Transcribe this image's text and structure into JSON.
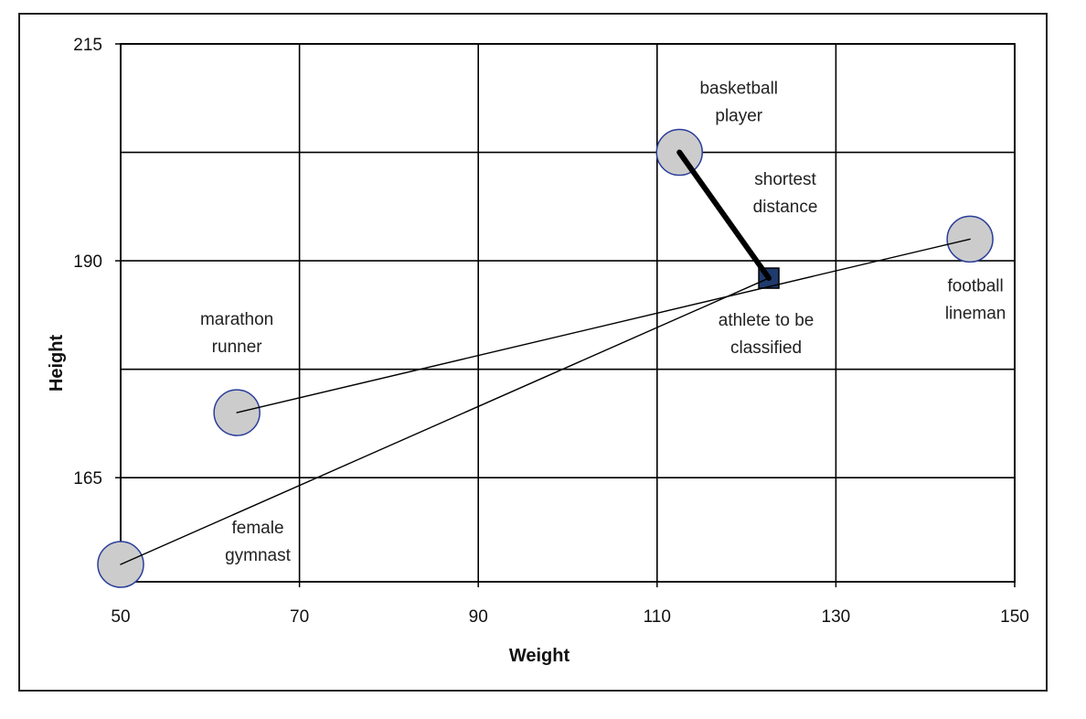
{
  "chart_data": {
    "type": "scatter",
    "title": "",
    "xlabel": "Weight",
    "ylabel": "Height",
    "xlim": [
      50,
      150
    ],
    "ylim": [
      153,
      215
    ],
    "x_ticks": [
      50,
      70,
      90,
      110,
      130,
      150
    ],
    "y_ticks": [
      165,
      190,
      215
    ],
    "x_grid_step": 20,
    "y_grid_step": 12.5,
    "grid": true,
    "legend": "none",
    "series": [
      {
        "marker": "circle",
        "points": [
          {
            "label": [
              "marathon",
              "runner"
            ],
            "x": 63,
            "y": 172.5
          },
          {
            "label": [
              "basketball",
              "player"
            ],
            "x": 112.5,
            "y": 202.5
          },
          {
            "label": [
              "football",
              "lineman"
            ],
            "x": 145,
            "y": 192.5
          },
          {
            "label": [
              "female",
              "gymnast"
            ],
            "x": 50,
            "y": 155
          }
        ]
      },
      {
        "marker": "square",
        "points": [
          {
            "label": [
              "athlete to be",
              "classified"
            ],
            "x": 122.5,
            "y": 188
          }
        ]
      }
    ],
    "connectors": [
      {
        "from": [
          "female",
          "gymnast"
        ],
        "to": [
          "athlete to be",
          "classified"
        ]
      },
      {
        "from": [
          "marathon",
          "runner"
        ],
        "to": [
          "football",
          "lineman"
        ]
      },
      {
        "from": [
          "basketball",
          "player"
        ],
        "to": [
          "athlete to be",
          "classified"
        ],
        "emphasis": true
      }
    ],
    "annotations": [
      {
        "text": [
          "shortest",
          "distance"
        ],
        "x": 122.5,
        "y": 198
      }
    ]
  },
  "colors": {
    "circle_fill": "#cccccc",
    "circle_stroke": "#2a3d9a",
    "square_fill": "#1f3b6e",
    "grid": "#000000"
  }
}
